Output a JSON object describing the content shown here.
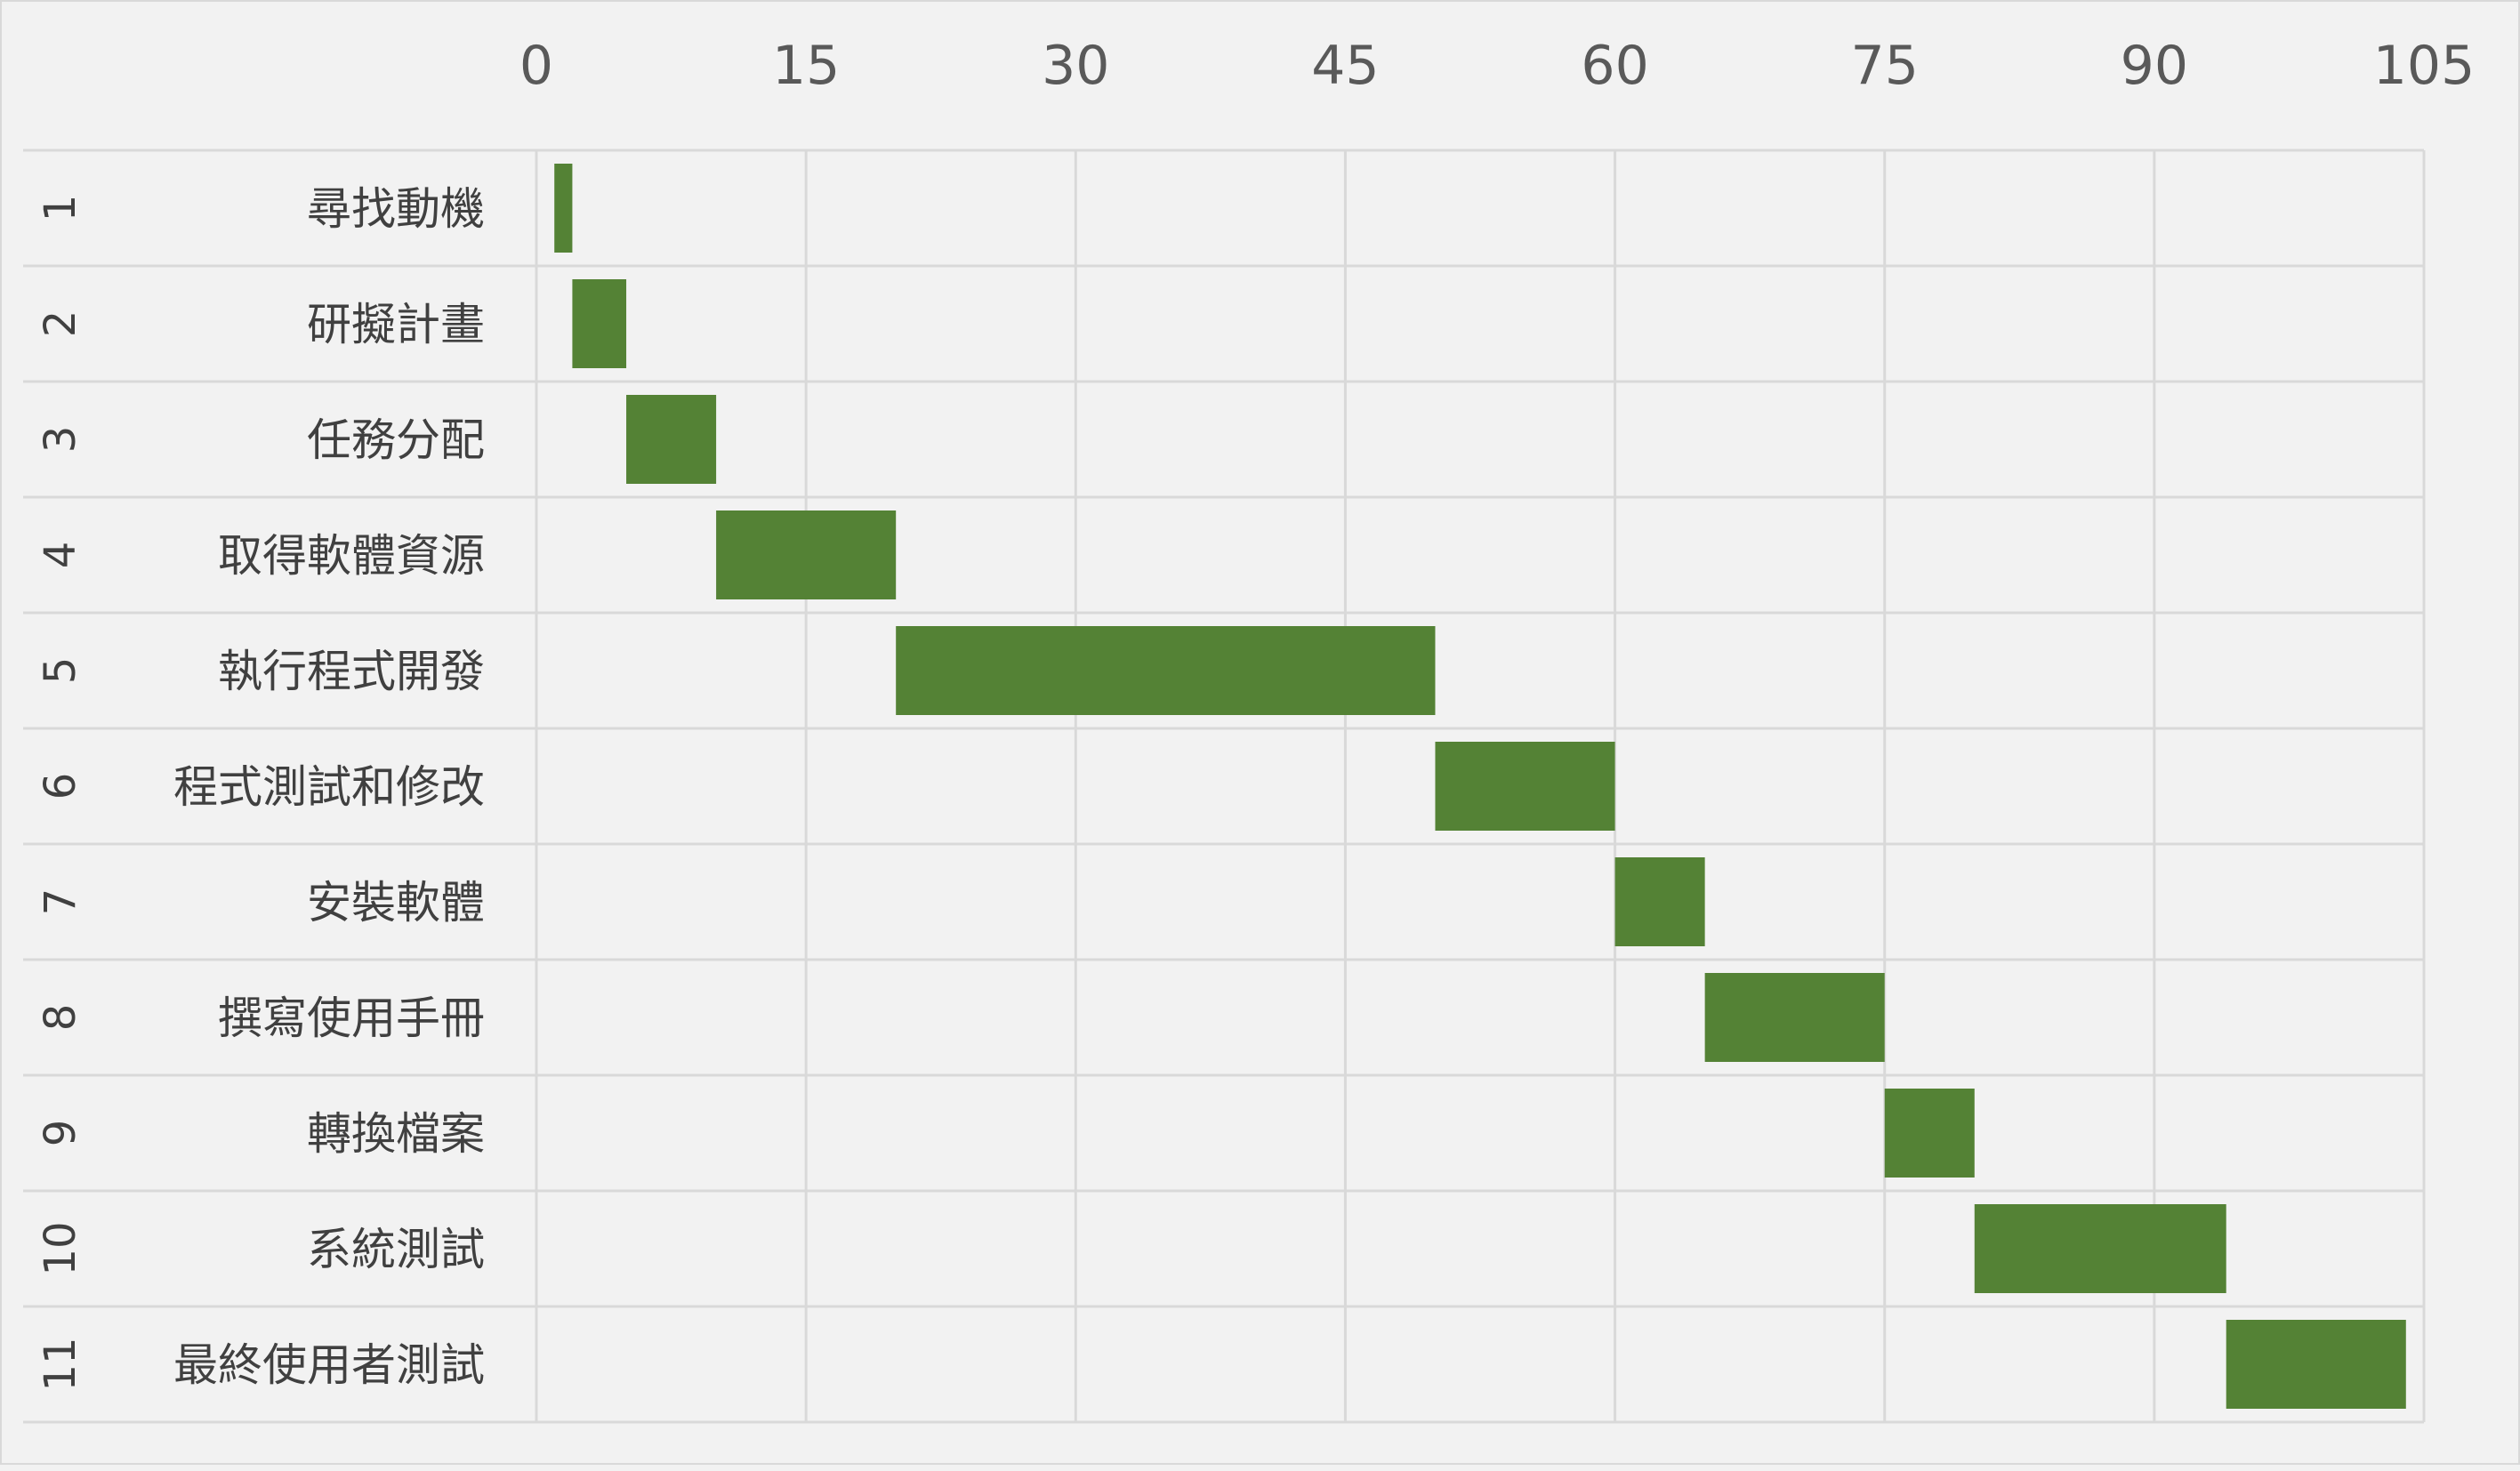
{
  "chart_data": {
    "type": "bar",
    "orientation": "horizontal",
    "stacked_offset": true,
    "xlim": [
      0,
      105
    ],
    "x_ticks": [
      0,
      15,
      30,
      45,
      60,
      75,
      90,
      105
    ],
    "x_tick_labels": [
      "0",
      "15",
      "30",
      "45",
      "60",
      "75",
      "90",
      "105"
    ],
    "x_axis_position": "top",
    "grid": true,
    "legend": "none",
    "bar_color": "#548235",
    "background_color": "#f2f2f2",
    "grid_color": "#d9d9d9",
    "categories": [
      {
        "id": "1",
        "name": "尋找動機",
        "start": 1,
        "duration": 1
      },
      {
        "id": "2",
        "name": "研擬計畫",
        "start": 2,
        "duration": 3
      },
      {
        "id": "3",
        "name": "任務分配",
        "start": 5,
        "duration": 5
      },
      {
        "id": "4",
        "name": "取得軟體資源",
        "start": 10,
        "duration": 10
      },
      {
        "id": "5",
        "name": "執行程式開發",
        "start": 20,
        "duration": 30
      },
      {
        "id": "6",
        "name": "程式測試和修改",
        "start": 50,
        "duration": 10
      },
      {
        "id": "7",
        "name": "安裝軟體",
        "start": 60,
        "duration": 5
      },
      {
        "id": "8",
        "name": "撰寫使用手冊",
        "start": 65,
        "duration": 10
      },
      {
        "id": "9",
        "name": "轉換檔案",
        "start": 75,
        "duration": 5
      },
      {
        "id": "10",
        "name": "系統測試",
        "start": 80,
        "duration": 14
      },
      {
        "id": "11",
        "name": "最終使用者測試",
        "start": 94,
        "duration": 10
      }
    ]
  }
}
